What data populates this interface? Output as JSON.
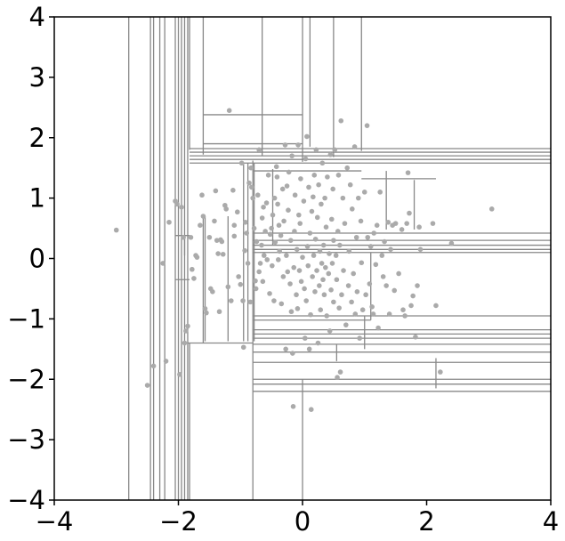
{
  "chart_data": {
    "type": "scatter",
    "title": "",
    "xlabel": "",
    "ylabel": "",
    "xlim": [
      -4,
      4
    ],
    "ylim": [
      -4,
      4
    ],
    "grid": false,
    "legend": "none",
    "x_ticks": [
      -4,
      -2,
      0,
      2,
      4
    ],
    "x_tick_labels": [
      "−4",
      "−2",
      "0",
      "2",
      "4"
    ],
    "y_ticks": [
      -4,
      -3,
      -2,
      -1,
      0,
      1,
      2,
      3,
      4
    ],
    "y_tick_labels": [
      "−4",
      "−3",
      "−2",
      "−1",
      "0",
      "1",
      "2",
      "3",
      "4"
    ],
    "colors": {
      "points": "#aaaaaa",
      "partition_lines": "#888888",
      "axes": "#000000",
      "background": "#ffffff"
    },
    "points": [
      [
        -3.0,
        0.47
      ],
      [
        -2.5,
        -2.1
      ],
      [
        -2.4,
        -1.78
      ],
      [
        -2.25,
        -0.08
      ],
      [
        -2.2,
        -1.7
      ],
      [
        -2.15,
        0.6
      ],
      [
        -2.05,
        0.95
      ],
      [
        -2.02,
        0.9
      ],
      [
        -1.98,
        -1.92
      ],
      [
        -1.95,
        0.85
      ],
      [
        -1.92,
        0.35
      ],
      [
        -1.9,
        -1.4
      ],
      [
        -1.88,
        -1.2
      ],
      [
        -1.85,
        -1.12
      ],
      [
        -1.8,
        0.35
      ],
      [
        -1.78,
        -0.18
      ],
      [
        -1.75,
        -0.33
      ],
      [
        -1.72,
        0.05
      ],
      [
        -1.7,
        0.02
      ],
      [
        -1.65,
        0.55
      ],
      [
        -1.62,
        1.05
      ],
      [
        -1.6,
        0.7
      ],
      [
        -1.57,
        -0.83
      ],
      [
        -1.55,
        -0.9
      ],
      [
        -1.5,
        0.35
      ],
      [
        -1.48,
        -0.5
      ],
      [
        -1.45,
        -0.55
      ],
      [
        -1.42,
        0.62
      ],
      [
        -1.4,
        1.12
      ],
      [
        -1.38,
        0.3
      ],
      [
        -1.36,
        0.08
      ],
      [
        -1.34,
        -0.88
      ],
      [
        -1.32,
        0.31
      ],
      [
        -1.3,
        0.28
      ],
      [
        -1.28,
        0.07
      ],
      [
        -1.25,
        0.88
      ],
      [
        -1.23,
        0.82
      ],
      [
        -1.2,
        -0.47
      ],
      [
        -1.18,
        2.45
      ],
      [
        -1.15,
        -0.7
      ],
      [
        -1.12,
        1.13
      ],
      [
        -1.1,
        0.55
      ],
      [
        -1.1,
        0.37
      ],
      [
        -1.05,
        0.77
      ],
      [
        -1.03,
        -0.3
      ],
      [
        -1.0,
        -0.43
      ],
      [
        -0.98,
        1.58
      ],
      [
        -0.96,
        -0.7
      ],
      [
        -0.95,
        -1.47
      ],
      [
        -0.93,
        0.13
      ],
      [
        -0.92,
        0.6
      ],
      [
        -0.9,
        0.42
      ],
      [
        -0.88,
        -0.08
      ],
      [
        -0.86,
        1.25
      ],
      [
        -0.84,
        -0.72
      ],
      [
        -0.83,
        1.5
      ],
      [
        -0.82,
        1.18
      ],
      [
        -0.8,
        1.0
      ],
      [
        -0.78,
        0.5
      ],
      [
        -0.76,
        -0.37
      ],
      [
        -0.75,
        -0.5
      ],
      [
        -0.74,
        0.28
      ],
      [
        -0.72,
        1.05
      ],
      [
        -0.7,
        -0.22
      ],
      [
        -0.7,
        1.8
      ],
      [
        -0.68,
        -0.08
      ],
      [
        -0.66,
        0.22
      ],
      [
        -0.65,
        0.67
      ],
      [
        -0.64,
        -0.38
      ],
      [
        -0.63,
        0.85
      ],
      [
        -0.62,
        0.05
      ],
      [
        -0.6,
        0.45
      ],
      [
        -0.58,
        0.92
      ],
      [
        -0.57,
        -0.02
      ],
      [
        -0.55,
        1.38
      ],
      [
        -0.53,
        -0.58
      ],
      [
        -0.52,
        0.4
      ],
      [
        -0.5,
        0.5
      ],
      [
        -0.49,
        -0.12
      ],
      [
        -0.48,
        0.72
      ],
      [
        -0.46,
        -0.7
      ],
      [
        -0.45,
        1.0
      ],
      [
        -0.44,
        0.27
      ],
      [
        -0.42,
        1.52
      ],
      [
        -0.41,
        1.35
      ],
      [
        -0.4,
        0.9
      ],
      [
        -0.39,
        -0.02
      ],
      [
        -0.38,
        0.55
      ],
      [
        -0.37,
        0.12
      ],
      [
        -0.35,
        0.38
      ],
      [
        -0.34,
        -0.75
      ],
      [
        -0.32,
        1.15
      ],
      [
        -0.31,
        -0.3
      ],
      [
        -0.3,
        0.62
      ],
      [
        -0.28,
        1.88
      ],
      [
        -0.27,
        -1.5
      ],
      [
        -0.26,
        0.05
      ],
      [
        -0.25,
        1.2
      ],
      [
        -0.24,
        -0.22
      ],
      [
        -0.23,
        0.8
      ],
      [
        -0.22,
        1.43
      ],
      [
        -0.2,
        -0.42
      ],
      [
        -0.19,
        0.3
      ],
      [
        -0.18,
        -0.88
      ],
      [
        -0.17,
        1.7
      ],
      [
        -0.16,
        -1.57
      ],
      [
        -0.15,
        -2.45
      ],
      [
        -0.14,
        -0.15
      ],
      [
        -0.13,
        0.45
      ],
      [
        -0.12,
        1.05
      ],
      [
        -0.1,
        -0.6
      ],
      [
        -0.09,
        0.15
      ],
      [
        -0.08,
        -0.83
      ],
      [
        -0.07,
        1.88
      ],
      [
        -0.06,
        0.72
      ],
      [
        -0.05,
        -0.2
      ],
      [
        -0.04,
        0.58
      ],
      [
        -0.03,
        1.32
      ],
      [
        -0.02,
        -0.38
      ],
      [
        0.0,
        0.02
      ],
      [
        0.02,
        0.95
      ],
      [
        0.03,
        -0.5
      ],
      [
        0.04,
        -1.32
      ],
      [
        0.05,
        1.65
      ],
      [
        0.06,
        -0.7
      ],
      [
        0.07,
        2.02
      ],
      [
        0.08,
        0.2
      ],
      [
        0.09,
        -0.12
      ],
      [
        0.1,
        1.18
      ],
      [
        0.11,
        -1.5
      ],
      [
        0.12,
        0.42
      ],
      [
        0.13,
        -0.93
      ],
      [
        0.14,
        -2.5
      ],
      [
        0.15,
        0.78
      ],
      [
        0.16,
        -0.3
      ],
      [
        0.17,
        1.02
      ],
      [
        0.18,
        0.05
      ],
      [
        0.19,
        1.38
      ],
      [
        0.2,
        -0.55
      ],
      [
        0.21,
        0.32
      ],
      [
        0.22,
        1.8
      ],
      [
        0.23,
        -0.2
      ],
      [
        0.24,
        0.68
      ],
      [
        0.25,
        -1.4
      ],
      [
        0.26,
        1.22
      ],
      [
        0.27,
        -0.45
      ],
      [
        0.28,
        0.12
      ],
      [
        0.29,
        -0.85
      ],
      [
        0.3,
        0.9
      ],
      [
        0.31,
        -0.08
      ],
      [
        0.32,
        1.58
      ],
      [
        0.33,
        -0.35
      ],
      [
        0.34,
        0.22
      ],
      [
        0.35,
        -0.6
      ],
      [
        0.36,
        1.0
      ],
      [
        0.37,
        -0.15
      ],
      [
        0.38,
        0.52
      ],
      [
        0.39,
        -0.95
      ],
      [
        0.4,
        1.35
      ],
      [
        0.42,
        -0.25
      ],
      [
        0.43,
        0.08
      ],
      [
        0.44,
        -1.2
      ],
      [
        0.45,
        1.72
      ],
      [
        0.46,
        -0.52
      ],
      [
        0.47,
        0.65
      ],
      [
        0.48,
        -0.08
      ],
      [
        0.49,
        1.15
      ],
      [
        0.5,
        -0.72
      ],
      [
        0.5,
        0.3
      ],
      [
        0.52,
        1.8
      ],
      [
        0.54,
        0.05
      ],
      [
        0.55,
        -0.35
      ],
      [
        0.56,
        -1.97
      ],
      [
        0.57,
        0.45
      ],
      [
        0.58,
        1.38
      ],
      [
        0.59,
        -0.82
      ],
      [
        0.6,
        0.22
      ],
      [
        0.61,
        -1.88
      ],
      [
        0.62,
        2.28
      ],
      [
        0.63,
        -0.6
      ],
      [
        0.65,
        1.0
      ],
      [
        0.66,
        -0.2
      ],
      [
        0.68,
        0.58
      ],
      [
        0.7,
        -1.1
      ],
      [
        0.72,
        1.5
      ],
      [
        0.74,
        -0.45
      ],
      [
        0.75,
        0.12
      ],
      [
        0.77,
        1.22
      ],
      [
        0.79,
        -0.72
      ],
      [
        0.8,
        0.82
      ],
      [
        0.82,
        -0.25
      ],
      [
        0.84,
        1.85
      ],
      [
        0.85,
        -0.92
      ],
      [
        0.87,
        0.35
      ],
      [
        0.88,
        -0.55
      ],
      [
        0.9,
        1.0
      ],
      [
        0.92,
        -1.32
      ],
      [
        0.94,
        0.62
      ],
      [
        0.95,
        -0.07
      ],
      [
        0.97,
        -0.85
      ],
      [
        1.0,
        1.1
      ],
      [
        1.02,
        -0.6
      ],
      [
        1.04,
        2.2
      ],
      [
        1.05,
        0.35
      ],
      [
        1.08,
        -0.42
      ],
      [
        1.1,
        0.2
      ],
      [
        1.12,
        -0.8
      ],
      [
        1.14,
        -0.92
      ],
      [
        1.15,
        0.42
      ],
      [
        1.18,
        -0.1
      ],
      [
        1.2,
        0.55
      ],
      [
        1.22,
        -1.15
      ],
      [
        1.25,
        1.1
      ],
      [
        1.28,
        0.05
      ],
      [
        1.3,
        -0.3
      ],
      [
        1.32,
        0.28
      ],
      [
        1.35,
        -0.45
      ],
      [
        1.38,
        0.6
      ],
      [
        1.4,
        -0.92
      ],
      [
        1.42,
        0.15
      ],
      [
        1.45,
        0.55
      ],
      [
        1.48,
        -0.53
      ],
      [
        1.5,
        0.58
      ],
      [
        1.55,
        -0.25
      ],
      [
        1.6,
        0.48
      ],
      [
        1.62,
        -0.85
      ],
      [
        1.65,
        -0.95
      ],
      [
        1.68,
        0.58
      ],
      [
        1.7,
        1.42
      ],
      [
        1.72,
        0.75
      ],
      [
        1.75,
        -0.78
      ],
      [
        1.78,
        -0.62
      ],
      [
        1.82,
        -1.3
      ],
      [
        1.85,
        -0.45
      ],
      [
        1.88,
        0.52
      ],
      [
        1.9,
        0.15
      ],
      [
        2.1,
        0.58
      ],
      [
        2.15,
        -0.78
      ],
      [
        2.22,
        -1.88
      ],
      [
        2.4,
        0.25
      ],
      [
        3.05,
        0.82
      ]
    ],
    "vertical_splits": [
      [
        -2.8,
        -4,
        4
      ],
      [
        -2.45,
        -4,
        4
      ],
      [
        -2.4,
        -4,
        4
      ],
      [
        -2.3,
        -4,
        4
      ],
      [
        -2.22,
        -4,
        4
      ],
      [
        -2.05,
        -4,
        4
      ],
      [
        -2.0,
        -4,
        4
      ],
      [
        -1.95,
        -4,
        4
      ],
      [
        -1.9,
        -4,
        4
      ],
      [
        -1.85,
        -4,
        4
      ],
      [
        -1.82,
        -4,
        -1.4
      ],
      [
        -1.82,
        1.8,
        4
      ],
      [
        -1.6,
        1.72,
        4
      ],
      [
        -1.6,
        -1.4,
        0.68
      ],
      [
        -1.57,
        -1.37,
        0.7
      ],
      [
        -1.2,
        -1.37,
        0.7
      ],
      [
        -0.95,
        -1.37,
        1.58
      ],
      [
        -0.88,
        -1.37,
        1.58
      ],
      [
        -0.8,
        -4,
        1.62
      ],
      [
        -0.78,
        -1.37,
        1.58
      ],
      [
        -0.65,
        1.7,
        4
      ],
      [
        -0.48,
        0.22,
        1.48
      ],
      [
        0.0,
        1.6,
        4
      ],
      [
        -1.9,
        0.38,
        0.05
      ],
      [
        0.12,
        1.85,
        4
      ],
      [
        0.0,
        -4,
        -2.0
      ],
      [
        0.5,
        1.68,
        4
      ],
      [
        0.95,
        1.78,
        4
      ],
      [
        1.1,
        -1.02,
        0.1
      ],
      [
        1.35,
        0.48,
        1.45
      ],
      [
        1.8,
        0.48,
        1.3
      ],
      [
        2.15,
        -2.15,
        -1.65
      ],
      [
        1.0,
        -1.5,
        -0.95
      ],
      [
        0.55,
        -1.7,
        -1.42
      ]
    ],
    "horizontal_splits": [
      [
        -1.82,
        4.0,
        1.82
      ],
      [
        -1.82,
        4.0,
        1.76
      ],
      [
        -1.82,
        4.0,
        1.7
      ],
      [
        -1.82,
        4.0,
        1.64
      ],
      [
        -1.82,
        4.0,
        1.58
      ],
      [
        -1.6,
        0.0,
        2.38
      ],
      [
        -1.6,
        0.0,
        1.9
      ],
      [
        -0.8,
        0.95,
        1.45
      ],
      [
        -0.8,
        4.0,
        0.42
      ],
      [
        -0.8,
        4.0,
        0.3
      ],
      [
        -0.8,
        4.0,
        0.22
      ],
      [
        -0.8,
        4.0,
        0.15
      ],
      [
        -0.8,
        4.0,
        0.1
      ],
      [
        -0.8,
        4.0,
        -0.95
      ],
      [
        -0.8,
        4.0,
        -1.18
      ],
      [
        -0.8,
        4.0,
        -1.25
      ],
      [
        -0.8,
        4.0,
        -1.32
      ],
      [
        -0.8,
        4.0,
        -1.42
      ],
      [
        -0.8,
        4.0,
        -1.55
      ],
      [
        -0.8,
        4.0,
        -1.72
      ],
      [
        -0.8,
        4.0,
        -2.0
      ],
      [
        -0.8,
        4.0,
        -2.08
      ],
      [
        -0.8,
        4.0,
        -2.2
      ],
      [
        -1.85,
        -0.8,
        -1.4
      ],
      [
        -2.05,
        -1.82,
        0.38
      ],
      [
        -2.05,
        -1.82,
        -0.35
      ],
      [
        0.95,
        2.15,
        1.32
      ],
      [
        -0.8,
        1.1,
        -1.02
      ]
    ]
  }
}
